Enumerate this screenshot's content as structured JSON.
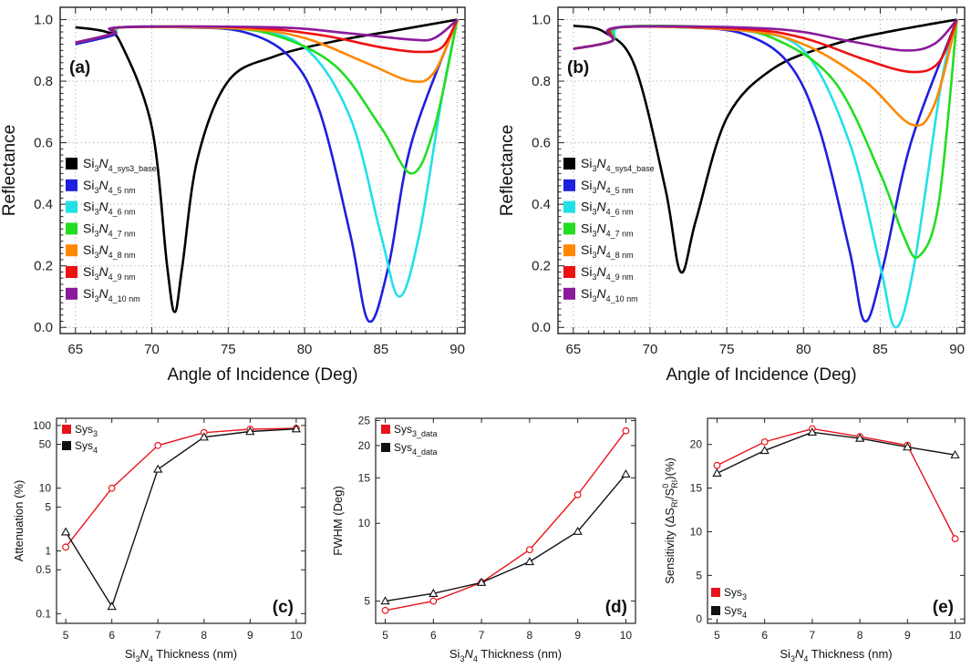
{
  "chart_data": [
    {
      "id": "a",
      "type": "line",
      "panel_label": "(a)",
      "xlabel": "Angle of Incidence (Deg)",
      "ylabel": "Reflectance",
      "xlim": [
        64,
        90.5
      ],
      "ylim": [
        -0.02,
        1.04
      ],
      "xticks": [
        "65",
        "70",
        "75",
        "80",
        "85",
        "90"
      ],
      "yticks": [
        "0.0",
        "0.2",
        "0.4",
        "0.6",
        "0.8",
        "1.0"
      ],
      "grid": true,
      "legend_position": "center-left",
      "series": [
        {
          "name": "Si3N4_sys3_base",
          "label_main": "Si3N4",
          "label_sub": "_sys3_base",
          "color": "#000000",
          "x": [
            65,
            67,
            68,
            70,
            71,
            71.5,
            72,
            73,
            75,
            78,
            82,
            86,
            90
          ],
          "y": [
            0.975,
            0.96,
            0.92,
            0.65,
            0.2,
            0.05,
            0.2,
            0.55,
            0.8,
            0.88,
            0.93,
            0.965,
            1.0
          ]
        },
        {
          "name": "Si3N4_5nm",
          "label_main": "Si3N4",
          "label_sub": "_5 nm",
          "color": "#1f1fdd",
          "x": [
            65,
            67.5,
            68,
            72,
            76,
            79,
            81,
            83,
            84.2,
            85.5,
            87,
            90
          ],
          "y": [
            0.92,
            0.95,
            0.975,
            0.975,
            0.96,
            0.88,
            0.7,
            0.3,
            0.02,
            0.2,
            0.6,
            1.0
          ]
        },
        {
          "name": "Si3N4_6nm",
          "label_main": "Si3N4",
          "label_sub": "_6 nm",
          "color": "#22e0e8",
          "x": [
            65,
            67.5,
            68,
            72,
            76,
            80,
            83,
            85,
            86.2,
            87.5,
            89,
            90
          ],
          "y": [
            0.925,
            0.955,
            0.975,
            0.975,
            0.97,
            0.91,
            0.68,
            0.3,
            0.1,
            0.3,
            0.75,
            1.0
          ]
        },
        {
          "name": "Si3N4_7nm",
          "label_main": "Si3N4",
          "label_sub": "_7 nm",
          "color": "#22dd22",
          "x": [
            65,
            67.5,
            68,
            74,
            78,
            82,
            85,
            87,
            88.5,
            90
          ],
          "y": [
            0.925,
            0.955,
            0.975,
            0.975,
            0.95,
            0.85,
            0.65,
            0.5,
            0.65,
            1.0
          ]
        },
        {
          "name": "Si3N4_8nm",
          "label_main": "Si3N4",
          "label_sub": "_8 nm",
          "color": "#ff8800",
          "x": [
            65,
            67.5,
            68,
            76,
            80,
            84,
            87,
            88.5,
            90
          ],
          "y": [
            0.925,
            0.955,
            0.975,
            0.97,
            0.94,
            0.86,
            0.8,
            0.83,
            1.0
          ]
        },
        {
          "name": "Si3N4_9nm",
          "label_main": "Si3N4",
          "label_sub": "_9 nm",
          "color": "#ee1111",
          "x": [
            65,
            67.5,
            68,
            76,
            81,
            85,
            87.5,
            89,
            90
          ],
          "y": [
            0.925,
            0.955,
            0.975,
            0.975,
            0.95,
            0.91,
            0.895,
            0.91,
            1.0
          ]
        },
        {
          "name": "Si3N4_10nm",
          "label_main": "Si3N4",
          "label_sub": "_10 nm",
          "color": "#8a1a9a",
          "x": [
            65,
            67.5,
            68,
            78,
            83,
            87,
            88.5,
            90
          ],
          "y": [
            0.925,
            0.955,
            0.975,
            0.975,
            0.955,
            0.935,
            0.94,
            1.0
          ]
        }
      ]
    },
    {
      "id": "b",
      "type": "line",
      "panel_label": "(b)",
      "xlabel": "Angle of Incidence (Deg)",
      "ylabel": "Reflectance",
      "xlim": [
        64,
        90.5
      ],
      "ylim": [
        -0.02,
        1.04
      ],
      "xticks": [
        "65",
        "70",
        "75",
        "80",
        "85",
        "90"
      ],
      "yticks": [
        "0.0",
        "0.2",
        "0.4",
        "0.6",
        "0.8",
        "1.0"
      ],
      "grid": true,
      "legend_position": "center-left",
      "series": [
        {
          "name": "Si3N4_sys4_base",
          "label_main": "Si3N4",
          "label_sub": "_sys4_base",
          "color": "#000000",
          "x": [
            65,
            67,
            69,
            71,
            72,
            73,
            75,
            78,
            82,
            86,
            90
          ],
          "y": [
            0.98,
            0.96,
            0.85,
            0.45,
            0.18,
            0.35,
            0.68,
            0.84,
            0.92,
            0.965,
            1.0
          ]
        },
        {
          "name": "Si3N4_5nm",
          "label_main": "Si3N4",
          "label_sub": "_5 nm",
          "color": "#1f1fdd",
          "x": [
            65,
            67.5,
            68,
            72,
            76,
            79,
            81,
            83,
            84,
            85.2,
            87,
            90
          ],
          "y": [
            0.905,
            0.93,
            0.975,
            0.975,
            0.955,
            0.86,
            0.65,
            0.25,
            0.02,
            0.2,
            0.6,
            1.0
          ]
        },
        {
          "name": "Si3N4_6nm",
          "label_main": "Si3N4",
          "label_sub": "_6 nm",
          "color": "#22e0e8",
          "x": [
            65,
            67.5,
            68,
            72,
            76,
            80,
            83,
            85,
            86,
            87.2,
            89,
            90
          ],
          "y": [
            0.905,
            0.93,
            0.975,
            0.975,
            0.965,
            0.9,
            0.6,
            0.2,
            0.0,
            0.2,
            0.8,
            1.0
          ]
        },
        {
          "name": "Si3N4_7nm",
          "label_main": "Si3N4",
          "label_sub": "_7 nm",
          "color": "#22dd22",
          "x": [
            65,
            67.5,
            68,
            74,
            78,
            82,
            85,
            86.5,
            87.5,
            88.8,
            90
          ],
          "y": [
            0.905,
            0.93,
            0.975,
            0.975,
            0.94,
            0.8,
            0.5,
            0.3,
            0.23,
            0.4,
            1.0
          ]
        },
        {
          "name": "Si3N4_8nm",
          "label_main": "Si3N4",
          "label_sub": "_8 nm",
          "color": "#ff8800",
          "x": [
            65,
            67.5,
            68,
            76,
            80,
            84,
            87,
            88.5,
            90
          ],
          "y": [
            0.905,
            0.93,
            0.975,
            0.965,
            0.92,
            0.8,
            0.66,
            0.72,
            1.0
          ]
        },
        {
          "name": "Si3N4_9nm",
          "label_main": "Si3N4",
          "label_sub": "_9 nm",
          "color": "#ee1111",
          "x": [
            65,
            67.5,
            68,
            76,
            80,
            84,
            87,
            88.8,
            90
          ],
          "y": [
            0.905,
            0.93,
            0.975,
            0.97,
            0.94,
            0.87,
            0.83,
            0.86,
            1.0
          ]
        },
        {
          "name": "Si3N4_10nm",
          "label_main": "Si3N4",
          "label_sub": "_10 nm",
          "color": "#8a1a9a",
          "x": [
            65,
            67.5,
            68,
            78,
            83,
            86.5,
            88.5,
            90
          ],
          "y": [
            0.905,
            0.93,
            0.975,
            0.97,
            0.93,
            0.9,
            0.92,
            1.0
          ]
        }
      ]
    },
    {
      "id": "c",
      "type": "scatter",
      "panel_label": "(c)",
      "xlabel": "Si3N4 Thickness (nm)",
      "xlabel_main": "Si",
      "xlabel_rest": "N",
      "xlabel_tail": " Thickness (nm)",
      "ylabel": "Attenuation (%)",
      "yscale": "log",
      "xlim": [
        4.8,
        10.2
      ],
      "ylim": [
        0.07,
        130
      ],
      "xticks": [
        "5",
        "6",
        "7",
        "8",
        "9",
        "10"
      ],
      "yticks": [
        "0.1",
        "0.5",
        "1",
        "5",
        "10",
        "50",
        "100"
      ],
      "ytick_values": [
        0.1,
        0.5,
        1,
        5,
        10,
        50,
        100
      ],
      "legend_position": "top-left",
      "x": [
        5,
        6,
        7,
        8,
        9,
        10
      ],
      "series": [
        {
          "name": "Sys3",
          "label_main": "Sys",
          "label_sub": "3",
          "color": "#e8141c",
          "marker": "circle",
          "values": [
            1.15,
            10.0,
            48,
            77,
            87,
            90
          ]
        },
        {
          "name": "Sys4",
          "label_main": "Sys",
          "label_sub": "4",
          "color": "#111111",
          "marker": "triangle",
          "values": [
            2.0,
            0.13,
            20,
            65,
            80,
            88
          ]
        }
      ]
    },
    {
      "id": "d",
      "type": "scatter",
      "panel_label": "(d)",
      "xlabel": "Si3N4 Thickness (nm)",
      "xlabel_main": "Si",
      "xlabel_rest": "N",
      "xlabel_tail": " Thickness (nm)",
      "ylabel": "FWHM (Deg)",
      "yscale": "log",
      "xlim": [
        4.8,
        10.2
      ],
      "ylim": [
        4.1,
        25.5
      ],
      "xticks": [
        "5",
        "6",
        "7",
        "8",
        "9",
        "10"
      ],
      "yticks": [
        "5",
        "10",
        "15",
        "20",
        "25"
      ],
      "ytick_values": [
        5,
        10,
        15,
        20,
        25
      ],
      "legend_position": "top-left",
      "x": [
        5,
        6,
        7,
        8,
        9,
        10
      ],
      "series": [
        {
          "name": "Sys3_data",
          "label_main": "Sys",
          "label_sub": "3_data",
          "color": "#e8141c",
          "marker": "circle",
          "values": [
            4.6,
            5.0,
            5.9,
            7.9,
            12.9,
            22.8
          ]
        },
        {
          "name": "Sys4_data",
          "label_main": "Sys",
          "label_sub": "4_data",
          "color": "#111111",
          "marker": "triangle",
          "values": [
            5.0,
            5.35,
            5.9,
            7.1,
            9.3,
            15.5
          ]
        }
      ]
    },
    {
      "id": "e",
      "type": "scatter",
      "panel_label": "(e)",
      "xlabel": "Si3N4 Thickness (nm)",
      "xlabel_main": "Si",
      "xlabel_rest": "N",
      "xlabel_tail": " Thickness (nm)",
      "ylabel": "Sensitivity (ΔS_RI/S⁰_RI)(%)",
      "ylabel_a": "Sensitivity (ΔS",
      "ylabel_b": "RI",
      "ylabel_c": "/S",
      "ylabel_d": "0",
      "ylabel_e": "RI",
      "ylabel_f": ")(%)",
      "yscale": "linear",
      "xlim": [
        4.8,
        10.2
      ],
      "ylim": [
        -0.5,
        23
      ],
      "xticks": [
        "5",
        "6",
        "7",
        "8",
        "9",
        "10"
      ],
      "yticks": [
        "0",
        "5",
        "10",
        "15",
        "20"
      ],
      "ytick_values": [
        0,
        5,
        10,
        15,
        20
      ],
      "legend_position": "bottom-left",
      "x": [
        5,
        6,
        7,
        8,
        9,
        10
      ],
      "series": [
        {
          "name": "Sys3",
          "label_main": "Sys",
          "label_sub": "3",
          "color": "#e8141c",
          "marker": "circle",
          "values": [
            17.6,
            20.3,
            21.8,
            20.9,
            19.9,
            9.2
          ]
        },
        {
          "name": "Sys4",
          "label_main": "Sys",
          "label_sub": "4",
          "color": "#111111",
          "marker": "triangle",
          "values": [
            16.7,
            19.3,
            21.4,
            20.7,
            19.7,
            18.8
          ]
        }
      ]
    }
  ]
}
